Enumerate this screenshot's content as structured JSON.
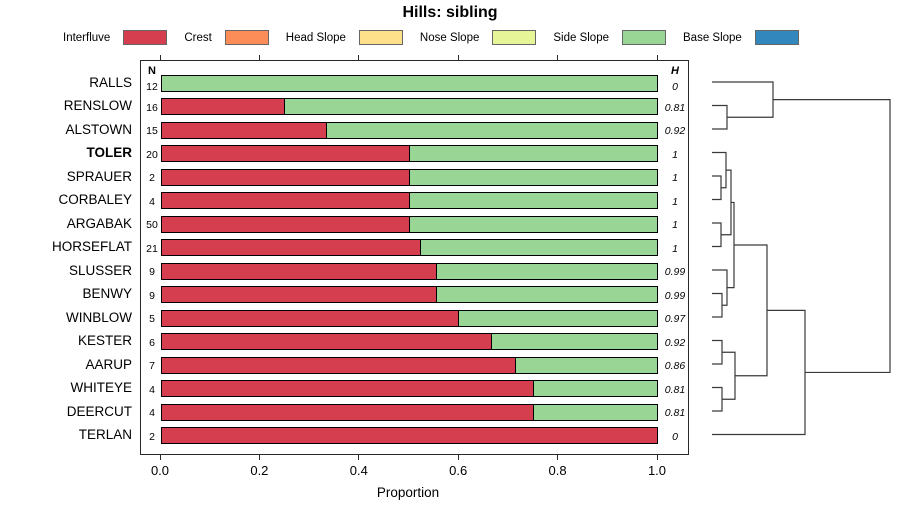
{
  "title": "Hills: sibling",
  "legend": {
    "items": [
      {
        "label": "Interfluve",
        "color": "#D53E4F"
      },
      {
        "label": "Crest",
        "color": "#FC8D59"
      },
      {
        "label": "Head Slope",
        "color": "#FEE08B"
      },
      {
        "label": "Nose Slope",
        "color": "#E6F598"
      },
      {
        "label": "Side Slope",
        "color": "#99D594"
      },
      {
        "label": "Base Slope",
        "color": "#3288BD"
      }
    ]
  },
  "chart_data": {
    "type": "bar",
    "orientation": "horizontal-stacked",
    "title": "Hills: sibling",
    "xlabel": "Proportion",
    "xlim": [
      0,
      1
    ],
    "x_ticks": [
      "0.0",
      "0.2",
      "0.4",
      "0.6",
      "0.8",
      "1.0"
    ],
    "n_header": "N",
    "h_header": "H",
    "series_shown": [
      "Interfluve",
      "Side Slope"
    ],
    "colors": {
      "interfluve": "#D53E4F",
      "side_slope": "#99D594"
    },
    "rows": [
      {
        "name": "RALLS",
        "bold": false,
        "n": "12",
        "h": "0",
        "interfluve": 0.0,
        "side_slope": 1.0
      },
      {
        "name": "RENSLOW",
        "bold": false,
        "n": "16",
        "h": "0.81",
        "interfluve": 0.25,
        "side_slope": 0.75
      },
      {
        "name": "ALSTOWN",
        "bold": false,
        "n": "15",
        "h": "0.92",
        "interfluve": 0.333,
        "side_slope": 0.667
      },
      {
        "name": "TOLER",
        "bold": true,
        "n": "20",
        "h": "1",
        "interfluve": 0.5,
        "side_slope": 0.5
      },
      {
        "name": "SPRAUER",
        "bold": false,
        "n": "2",
        "h": "1",
        "interfluve": 0.5,
        "side_slope": 0.5
      },
      {
        "name": "CORBALEY",
        "bold": false,
        "n": "4",
        "h": "1",
        "interfluve": 0.5,
        "side_slope": 0.5
      },
      {
        "name": "ARGABAK",
        "bold": false,
        "n": "50",
        "h": "1",
        "interfluve": 0.5,
        "side_slope": 0.5
      },
      {
        "name": "HORSEFLAT",
        "bold": false,
        "n": "21",
        "h": "1",
        "interfluve": 0.524,
        "side_slope": 0.476
      },
      {
        "name": "SLUSSER",
        "bold": false,
        "n": "9",
        "h": "0.99",
        "interfluve": 0.556,
        "side_slope": 0.444
      },
      {
        "name": "BENWY",
        "bold": false,
        "n": "9",
        "h": "0.99",
        "interfluve": 0.556,
        "side_slope": 0.444
      },
      {
        "name": "WINBLOW",
        "bold": false,
        "n": "5",
        "h": "0.97",
        "interfluve": 0.6,
        "side_slope": 0.4
      },
      {
        "name": "KESTER",
        "bold": false,
        "n": "6",
        "h": "0.92",
        "interfluve": 0.667,
        "side_slope": 0.333
      },
      {
        "name": "AARUP",
        "bold": false,
        "n": "7",
        "h": "0.86",
        "interfluve": 0.714,
        "side_slope": 0.286
      },
      {
        "name": "WHITEYE",
        "bold": false,
        "n": "4",
        "h": "0.81",
        "interfluve": 0.75,
        "side_slope": 0.25
      },
      {
        "name": "DEERCUT",
        "bold": false,
        "n": "4",
        "h": "0.81",
        "interfluve": 0.75,
        "side_slope": 0.25
      },
      {
        "name": "TERLAN",
        "bold": false,
        "n": "2",
        "h": "0",
        "interfluve": 1.0,
        "side_slope": 0.0
      }
    ],
    "dendrogram": {
      "leaf_x": 12,
      "merges": [
        {
          "a": 1,
          "b": 2,
          "x": 27
        },
        {
          "a": 0,
          "b": "M0",
          "x": 73
        },
        {
          "a": 4,
          "b": 5,
          "x": 21
        },
        {
          "a": 3,
          "b": "M2",
          "x": 26
        },
        {
          "a": 6,
          "b": 7,
          "x": 21
        },
        {
          "a": "M3",
          "b": "M4",
          "x": 31
        },
        {
          "a": 9,
          "b": 10,
          "x": 22
        },
        {
          "a": 8,
          "b": "M6",
          "x": 27
        },
        {
          "a": "M5",
          "b": "M7",
          "x": 34
        },
        {
          "a": 11,
          "b": 12,
          "x": 22
        },
        {
          "a": 13,
          "b": 14,
          "x": 22
        },
        {
          "a": "M9",
          "b": "M10",
          "x": 35
        },
        {
          "a": "M8",
          "b": "M11",
          "x": 67
        },
        {
          "a": "M12",
          "b": 15,
          "x": 105
        },
        {
          "a": "M1",
          "b": "M13",
          "x": 190
        }
      ]
    }
  }
}
